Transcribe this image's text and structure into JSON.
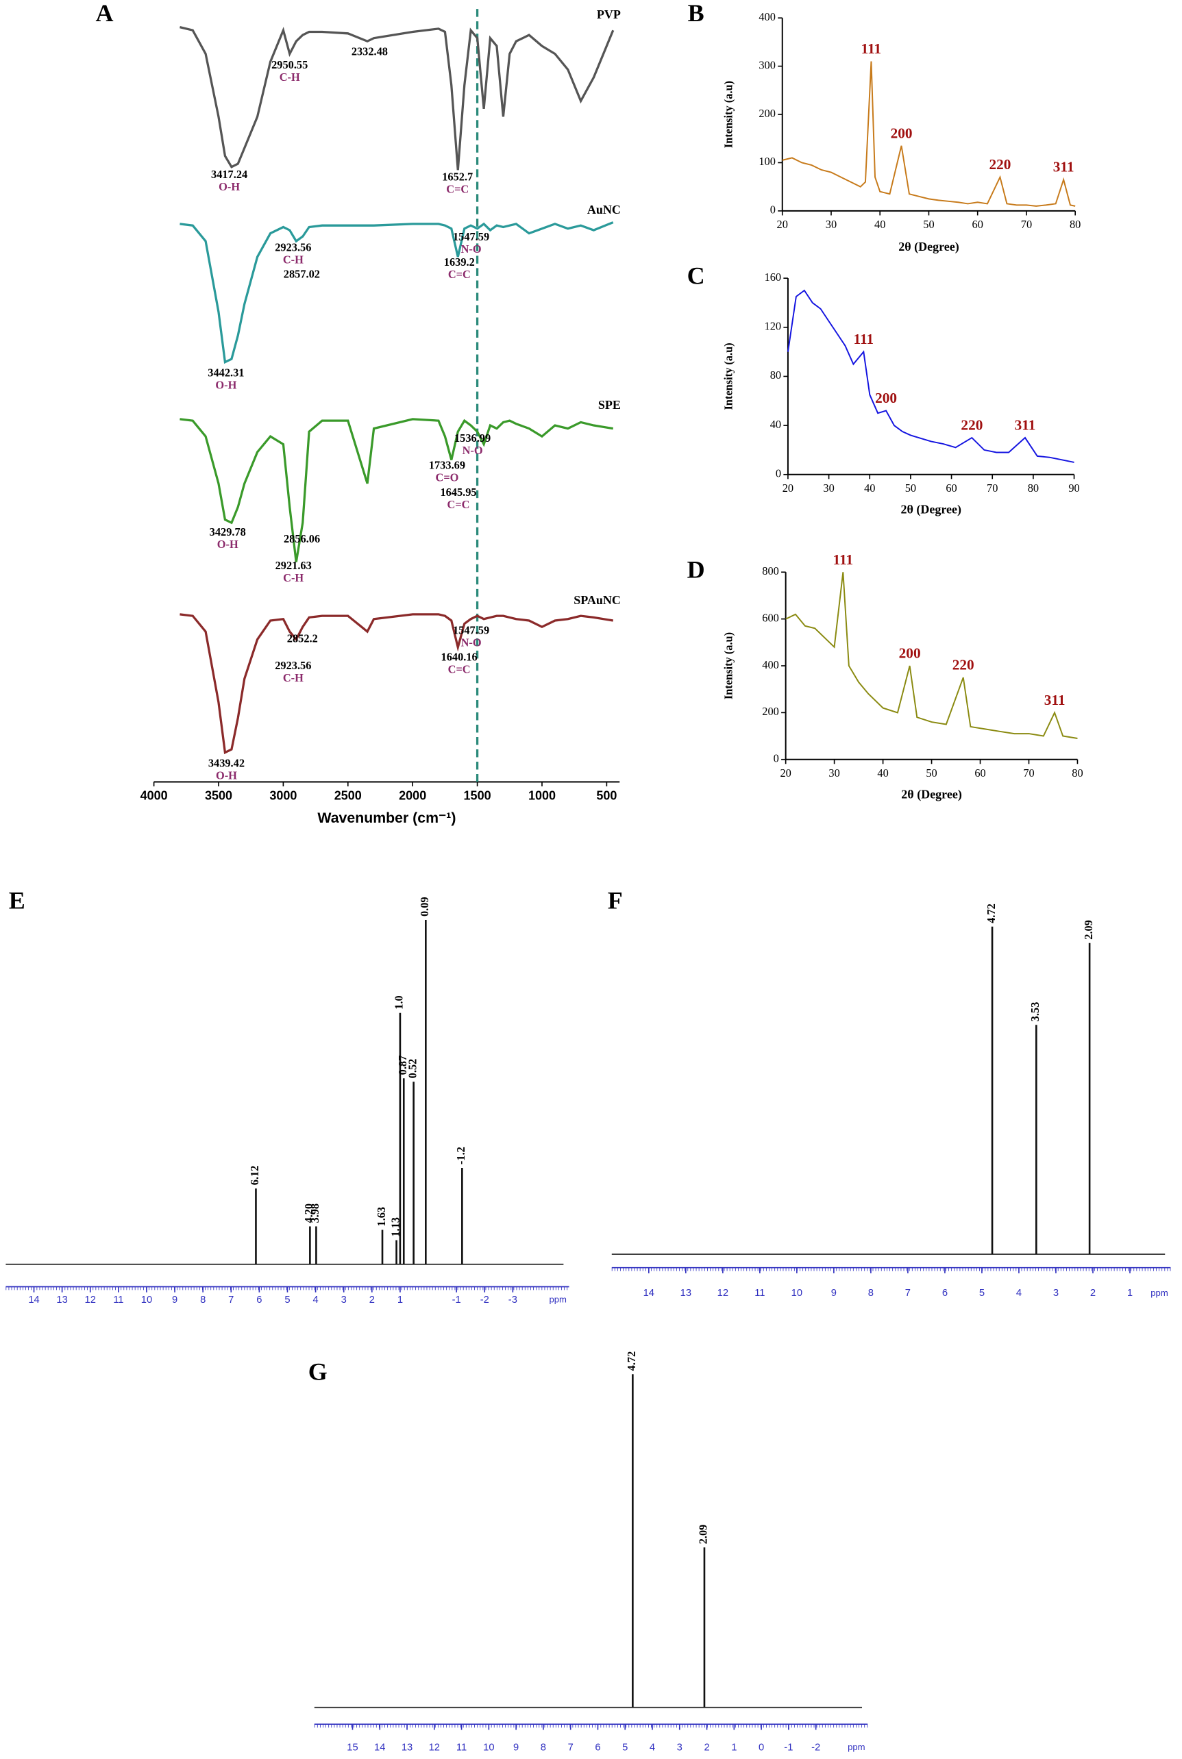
{
  "chart_data": [
    {
      "type": "line",
      "panel": "A",
      "offset": true,
      "xlabel": "Wavenumber (cm⁻¹)",
      "xlim": [
        4000,
        400
      ],
      "xticks": [
        4000,
        3500,
        3000,
        2500,
        2000,
        1500,
        1000,
        500
      ],
      "ylim": [
        0,
        100
      ],
      "vline": 1500,
      "x": [
        3800,
        3700,
        3600,
        3500,
        3450,
        3400,
        3350,
        3300,
        3200,
        3100,
        3000,
        2950,
        2900,
        2850,
        2800,
        2700,
        2500,
        2350,
        2300,
        2000,
        1800,
        1750,
        1700,
        1650,
        1600,
        1550,
        1500,
        1450,
        1400,
        1350,
        1300,
        1250,
        1200,
        1100,
        1000,
        900,
        800,
        700,
        600,
        450
      ],
      "series": [
        {
          "name": "PVP",
          "color": "#555555",
          "values": [
            97,
            95,
            80,
            40,
            15,
            8,
            10,
            20,
            40,
            75,
            95,
            80,
            88,
            92,
            94,
            94,
            93,
            88,
            90,
            94,
            96,
            94,
            60,
            6,
            60,
            95,
            90,
            45,
            90,
            85,
            40,
            80,
            88,
            92,
            85,
            80,
            70,
            50,
            65,
            95
          ],
          "peaks": [
            {
              "value": 3417.24,
              "group": "O-H"
            },
            {
              "value": 2950.55,
              "group": "C-H"
            },
            {
              "value": 2332.48
            },
            {
              "value": 1652.7,
              "group": "C=C"
            }
          ]
        },
        {
          "name": "AuNC",
          "color": "#2a9a9a",
          "values": [
            96,
            95,
            85,
            40,
            8,
            10,
            25,
            45,
            75,
            90,
            94,
            92,
            85,
            88,
            94,
            95,
            95,
            95,
            95,
            96,
            96,
            95,
            93,
            75,
            93,
            95,
            93,
            96,
            92,
            95,
            94,
            95,
            96,
            90,
            93,
            96,
            93,
            95,
            92,
            97
          ],
          "peaks": [
            {
              "value": 1547.59,
              "group": "N-O"
            },
            {
              "value": 2923.56,
              "group": "C-H"
            },
            {
              "value": 2857.02
            },
            {
              "value": 1639.2,
              "group": "C=C"
            },
            {
              "value": 3442.31,
              "group": "O-H"
            }
          ]
        },
        {
          "name": "SPE",
          "color": "#3a9a2a",
          "values": [
            96,
            95,
            85,
            55,
            32,
            30,
            40,
            55,
            75,
            85,
            80,
            40,
            5,
            30,
            88,
            95,
            95,
            55,
            90,
            96,
            95,
            85,
            70,
            88,
            95,
            92,
            88,
            80,
            92,
            90,
            94,
            95,
            93,
            90,
            85,
            92,
            90,
            94,
            92,
            90
          ],
          "peaks": [
            {
              "value": 1536.99,
              "group": "N-O"
            },
            {
              "value": 1733.69,
              "group": "C=O"
            },
            {
              "value": 1645.95,
              "group": "C=C"
            },
            {
              "value": 3429.78,
              "group": "O-H"
            },
            {
              "value": 2856.06
            },
            {
              "value": 2921.63,
              "group": "C-H"
            }
          ]
        },
        {
          "name": "SPAuNC",
          "color": "#8b2a2a",
          "values": [
            96,
            95,
            85,
            40,
            8,
            10,
            30,
            55,
            80,
            92,
            93,
            85,
            80,
            88,
            94,
            95,
            95,
            85,
            93,
            96,
            96,
            95,
            92,
            75,
            90,
            93,
            95,
            93,
            94,
            95,
            95,
            94,
            93,
            92,
            88,
            92,
            93,
            95,
            94,
            92
          ],
          "peaks": [
            {
              "value": 2852.2
            },
            {
              "value": 2923.56,
              "group": "C-H"
            },
            {
              "value": 1547.59,
              "group": "N-O"
            },
            {
              "value": 1640.16,
              "group": "C=C"
            },
            {
              "value": 3439.42,
              "group": "O-H"
            }
          ]
        }
      ]
    },
    {
      "type": "line",
      "panel": "B",
      "xlabel": "2θ (Degree)",
      "ylabel": "Intensity (a.u)",
      "color": "#c77a1a",
      "xlim": [
        20,
        80
      ],
      "xticks": [
        20,
        30,
        40,
        50,
        60,
        70,
        80
      ],
      "ylim": [
        0,
        400
      ],
      "yticks": [
        0,
        100,
        200,
        300,
        400
      ],
      "x": [
        20,
        22,
        24,
        26,
        28,
        30,
        32,
        34,
        36,
        37,
        38.2,
        39,
        40,
        42,
        44.4,
        46,
        48,
        50,
        52,
        54,
        56,
        58,
        60,
        62,
        64.6,
        66,
        68,
        70,
        72,
        74,
        76,
        77.6,
        79,
        80
      ],
      "values": [
        105,
        110,
        100,
        95,
        85,
        80,
        70,
        60,
        50,
        60,
        310,
        70,
        40,
        35,
        135,
        35,
        30,
        25,
        22,
        20,
        18,
        15,
        18,
        15,
        70,
        15,
        12,
        12,
        10,
        12,
        15,
        65,
        12,
        10
      ],
      "annotations": [
        {
          "text": "111",
          "x": 38.2
        },
        {
          "text": "200",
          "x": 44.4
        },
        {
          "text": "220",
          "x": 64.6
        },
        {
          "text": "311",
          "x": 77.6
        }
      ]
    },
    {
      "type": "line",
      "panel": "C",
      "xlabel": "2θ (Degree)",
      "ylabel": "Intensity (a.u)",
      "color": "#1414e0",
      "xlim": [
        20,
        90
      ],
      "xticks": [
        20,
        30,
        40,
        50,
        60,
        70,
        80,
        90
      ],
      "ylim": [
        0,
        160
      ],
      "yticks": [
        0,
        40,
        80,
        120,
        160
      ],
      "x": [
        20,
        22,
        24,
        26,
        28,
        30,
        32,
        34,
        36,
        38.5,
        40,
        42,
        44,
        46,
        48,
        50,
        52,
        55,
        58,
        61,
        65,
        68,
        71,
        74,
        78,
        81,
        84,
        87,
        90
      ],
      "values": [
        100,
        145,
        150,
        140,
        135,
        125,
        115,
        105,
        90,
        100,
        65,
        50,
        52,
        40,
        35,
        32,
        30,
        27,
        25,
        22,
        30,
        20,
        18,
        18,
        30,
        15,
        14,
        12,
        10
      ],
      "annotations": [
        {
          "text": "111",
          "x": 38.5
        },
        {
          "text": "200",
          "x": 44
        },
        {
          "text": "220",
          "x": 65
        },
        {
          "text": "311",
          "x": 78
        }
      ]
    },
    {
      "type": "line",
      "panel": "D",
      "xlabel": "2θ (Degree)",
      "ylabel": "Intensity (a.u)",
      "color": "#8a8a10",
      "xlim": [
        20,
        80
      ],
      "xticks": [
        20,
        30,
        40,
        50,
        60,
        70,
        80
      ],
      "ylim": [
        0,
        800
      ],
      "yticks": [
        0,
        200,
        400,
        600,
        800
      ],
      "x": [
        20,
        22,
        24,
        26,
        28,
        30,
        31.8,
        33,
        35,
        37,
        40,
        43,
        45.5,
        47,
        50,
        53,
        56.5,
        58,
        61,
        64,
        67,
        70,
        73,
        75.3,
        77,
        80
      ],
      "values": [
        600,
        620,
        570,
        560,
        520,
        480,
        800,
        400,
        330,
        280,
        220,
        200,
        400,
        180,
        160,
        150,
        350,
        140,
        130,
        120,
        110,
        110,
        100,
        200,
        100,
        90
      ],
      "annotations": [
        {
          "text": "111",
          "x": 31.8
        },
        {
          "text": "200",
          "x": 45.5
        },
        {
          "text": "220",
          "x": 56.5
        },
        {
          "text": "311",
          "x": 75.3
        }
      ]
    },
    {
      "type": "spectrum",
      "panel": "E",
      "xlabel": "ppm",
      "xlim": [
        15,
        -5
      ],
      "xticks": [
        14,
        13,
        12,
        11,
        10,
        9,
        8,
        7,
        6,
        5,
        4,
        3,
        2,
        1,
        -1,
        -2,
        -3
      ],
      "peaks": [
        {
          "value": 6.12,
          "height": 22
        },
        {
          "value": 4.2,
          "label": "4.20",
          "height": 11
        },
        {
          "value": 3.98,
          "height": 11
        },
        {
          "value": 1.63,
          "height": 10
        },
        {
          "value": 1.13,
          "height": 7
        },
        {
          "value": 1,
          "label": "1.0",
          "height": 73
        },
        {
          "value": 0.87,
          "height": 54
        },
        {
          "value": 0.52,
          "height": 53
        },
        {
          "value": 0.09,
          "height": 100
        },
        {
          "value": -1.2,
          "height": 28
        }
      ]
    },
    {
      "type": "spectrum",
      "panel": "F",
      "xlabel": "ppm",
      "xlim": [
        15,
        -0.1
      ],
      "xticks": [
        14,
        13,
        12,
        11,
        10,
        9,
        8,
        7,
        6,
        5,
        4,
        3,
        2,
        1
      ],
      "peaks": [
        {
          "value": 4.72,
          "height": 100
        },
        {
          "value": 3.53,
          "height": 70
        },
        {
          "value": 2.09,
          "height": 95
        }
      ]
    },
    {
      "type": "spectrum",
      "panel": "G",
      "xlabel": "ppm",
      "xlim": [
        16.4,
        -3.9
      ],
      "xticks": [
        15,
        14,
        13,
        12,
        11,
        10,
        9,
        8,
        7,
        6,
        5,
        4,
        3,
        2,
        1,
        0,
        -1,
        -2
      ],
      "peaks": [
        {
          "value": 4.72,
          "height": 100
        },
        {
          "value": 2.09,
          "height": 48
        }
      ]
    }
  ]
}
